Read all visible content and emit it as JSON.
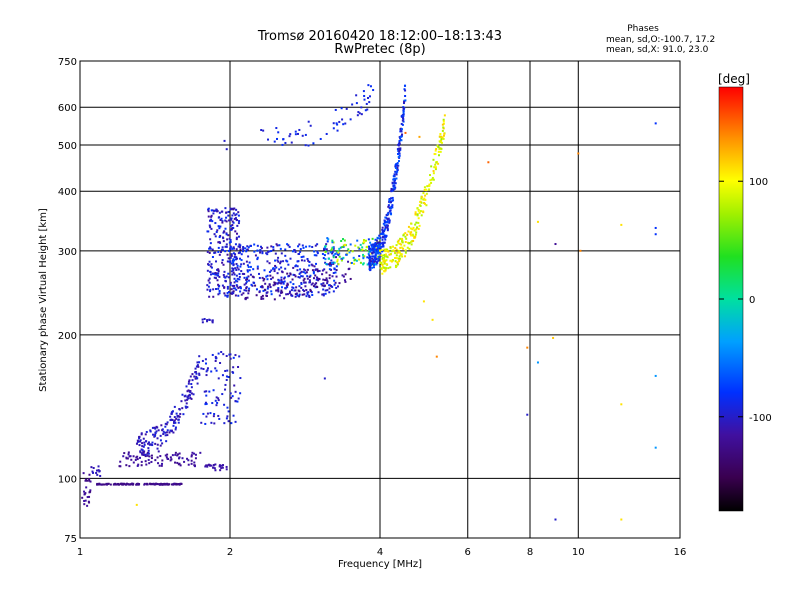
{
  "header": {
    "title": "Tromsø 20160420 18:12:00–18:13:43",
    "subtitle": "RwPretec (8p)"
  },
  "stats": {
    "heading": "Phases",
    "line_o": "mean, sd,O:-100.7, 17.2",
    "line_x": "mean, sd,X:  91.0, 23.0"
  },
  "colorbar": {
    "label": "[deg]",
    "ticks": [
      {
        "label": "100",
        "value": 100
      },
      {
        "label": "0",
        "value": 0
      },
      {
        "label": "-100",
        "value": -100
      }
    ],
    "range": [
      -180,
      180
    ]
  },
  "chart_data": {
    "type": "scatter",
    "title": "Tromsø 20160420 18:12:00–18:13:43",
    "subtitle": "RwPretec (8p)",
    "xlabel": "Frequency [MHz]",
    "ylabel": "Stationary phase Virtual Height [km]",
    "xscale": "log",
    "yscale": "log",
    "xlim": [
      1,
      16
    ],
    "ylim": [
      75,
      750
    ],
    "xticks": [
      1,
      2,
      4,
      6,
      8,
      10,
      16
    ],
    "xtick_labels": [
      "1",
      "2",
      "4",
      "6",
      "8",
      "10",
      "16"
    ],
    "yticks": [
      75,
      100,
      200,
      300,
      400,
      500,
      600,
      750
    ],
    "ytick_labels": [
      "75",
      "100",
      "200",
      "300",
      "400",
      "500",
      "600",
      "750"
    ],
    "grid": true,
    "color_variable": "phase [deg]",
    "color_range": [
      -180,
      180
    ],
    "clusters": [
      {
        "x0": 1.01,
        "x1": 1.05,
        "y0": 86,
        "y1": 105,
        "c0": -130,
        "c1": -110,
        "n": 25,
        "shape": "band"
      },
      {
        "x0": 1.05,
        "x1": 1.1,
        "y0": 100,
        "y1": 106,
        "c0": -110,
        "c1": -100,
        "n": 12,
        "shape": "band"
      },
      {
        "x0": 1.08,
        "x1": 1.6,
        "y0": 97,
        "y1": 97.5,
        "c0": -130,
        "c1": -120,
        "n": 150,
        "shape": "band"
      },
      {
        "x0": 1.2,
        "x1": 1.75,
        "y0": 106,
        "y1": 114,
        "c0": -125,
        "c1": -110,
        "n": 90,
        "shape": "band"
      },
      {
        "x0": 1.3,
        "x1": 1.75,
        "y0": 118,
        "y1": 175,
        "c0": -115,
        "c1": -90,
        "n": 170,
        "shape": "rise"
      },
      {
        "x0": 1.78,
        "x1": 1.97,
        "y0": 104,
        "y1": 107,
        "c0": -115,
        "c1": -110,
        "n": 25,
        "shape": "band"
      },
      {
        "x0": 1.75,
        "x1": 2.1,
        "y0": 130,
        "y1": 185,
        "c0": -110,
        "c1": -80,
        "n": 90,
        "shape": "band"
      },
      {
        "x0": 1.75,
        "x1": 1.85,
        "y0": 212,
        "y1": 216,
        "c0": -105,
        "c1": -100,
        "n": 12,
        "shape": "band"
      },
      {
        "x0": 1.8,
        "x1": 2.1,
        "y0": 240,
        "y1": 370,
        "c0": -120,
        "c1": -80,
        "n": 260,
        "shape": "band"
      },
      {
        "x0": 2.0,
        "x1": 3.3,
        "y0": 240,
        "y1": 310,
        "c0": -115,
        "c1": -70,
        "n": 360,
        "shape": "band"
      },
      {
        "x0": 2.1,
        "x1": 3.5,
        "y0": 250,
        "y1": 275,
        "c0": -130,
        "c1": -110,
        "n": 110,
        "shape": "rise"
      },
      {
        "x0": 3.1,
        "x1": 4.0,
        "y0": 280,
        "y1": 320,
        "c0": -90,
        "c1": 110,
        "n": 120,
        "shape": "band"
      },
      {
        "x0": 3.8,
        "x1": 4.5,
        "y0": 290,
        "y1": 650,
        "c0": -110,
        "c1": -60,
        "n": 320,
        "shape": "rise"
      },
      {
        "x0": 4.0,
        "x1": 5.4,
        "y0": 285,
        "y1": 560,
        "c0": 70,
        "c1": 120,
        "n": 260,
        "shape": "rise"
      },
      {
        "x0": 2.3,
        "x1": 3.9,
        "y0": 510,
        "y1": 650,
        "c0": -100,
        "c1": -80,
        "n": 60,
        "shape": "rise"
      }
    ],
    "points": [
      {
        "x": 1.95,
        "y": 510,
        "c": -100
      },
      {
        "x": 1.97,
        "y": 490,
        "c": -100
      },
      {
        "x": 3.1,
        "y": 162,
        "c": -100
      },
      {
        "x": 4.5,
        "y": 530,
        "c": 150
      },
      {
        "x": 4.8,
        "y": 520,
        "c": 130
      },
      {
        "x": 4.9,
        "y": 235,
        "c": 110
      },
      {
        "x": 5.1,
        "y": 215,
        "c": 110
      },
      {
        "x": 5.2,
        "y": 180,
        "c": 140
      },
      {
        "x": 6.6,
        "y": 460,
        "c": 150
      },
      {
        "x": 7.9,
        "y": 188,
        "c": 140
      },
      {
        "x": 7.9,
        "y": 136,
        "c": -100
      },
      {
        "x": 8.3,
        "y": 345,
        "c": 110
      },
      {
        "x": 8.3,
        "y": 175,
        "c": -40
      },
      {
        "x": 8.9,
        "y": 197,
        "c": 120
      },
      {
        "x": 9.0,
        "y": 310,
        "c": -120
      },
      {
        "x": 9.0,
        "y": 82,
        "c": -100
      },
      {
        "x": 10.0,
        "y": 480,
        "c": 140
      },
      {
        "x": 10.1,
        "y": 300,
        "c": 140
      },
      {
        "x": 12.2,
        "y": 340,
        "c": 110
      },
      {
        "x": 12.2,
        "y": 143,
        "c": 110
      },
      {
        "x": 12.2,
        "y": 82,
        "c": 110
      },
      {
        "x": 14.3,
        "y": 555,
        "c": -80
      },
      {
        "x": 14.3,
        "y": 335,
        "c": -80
      },
      {
        "x": 14.3,
        "y": 325,
        "c": -80
      },
      {
        "x": 14.3,
        "y": 164,
        "c": -40
      },
      {
        "x": 14.3,
        "y": 116,
        "c": -40
      },
      {
        "x": 1.3,
        "y": 88,
        "c": 110
      }
    ]
  }
}
